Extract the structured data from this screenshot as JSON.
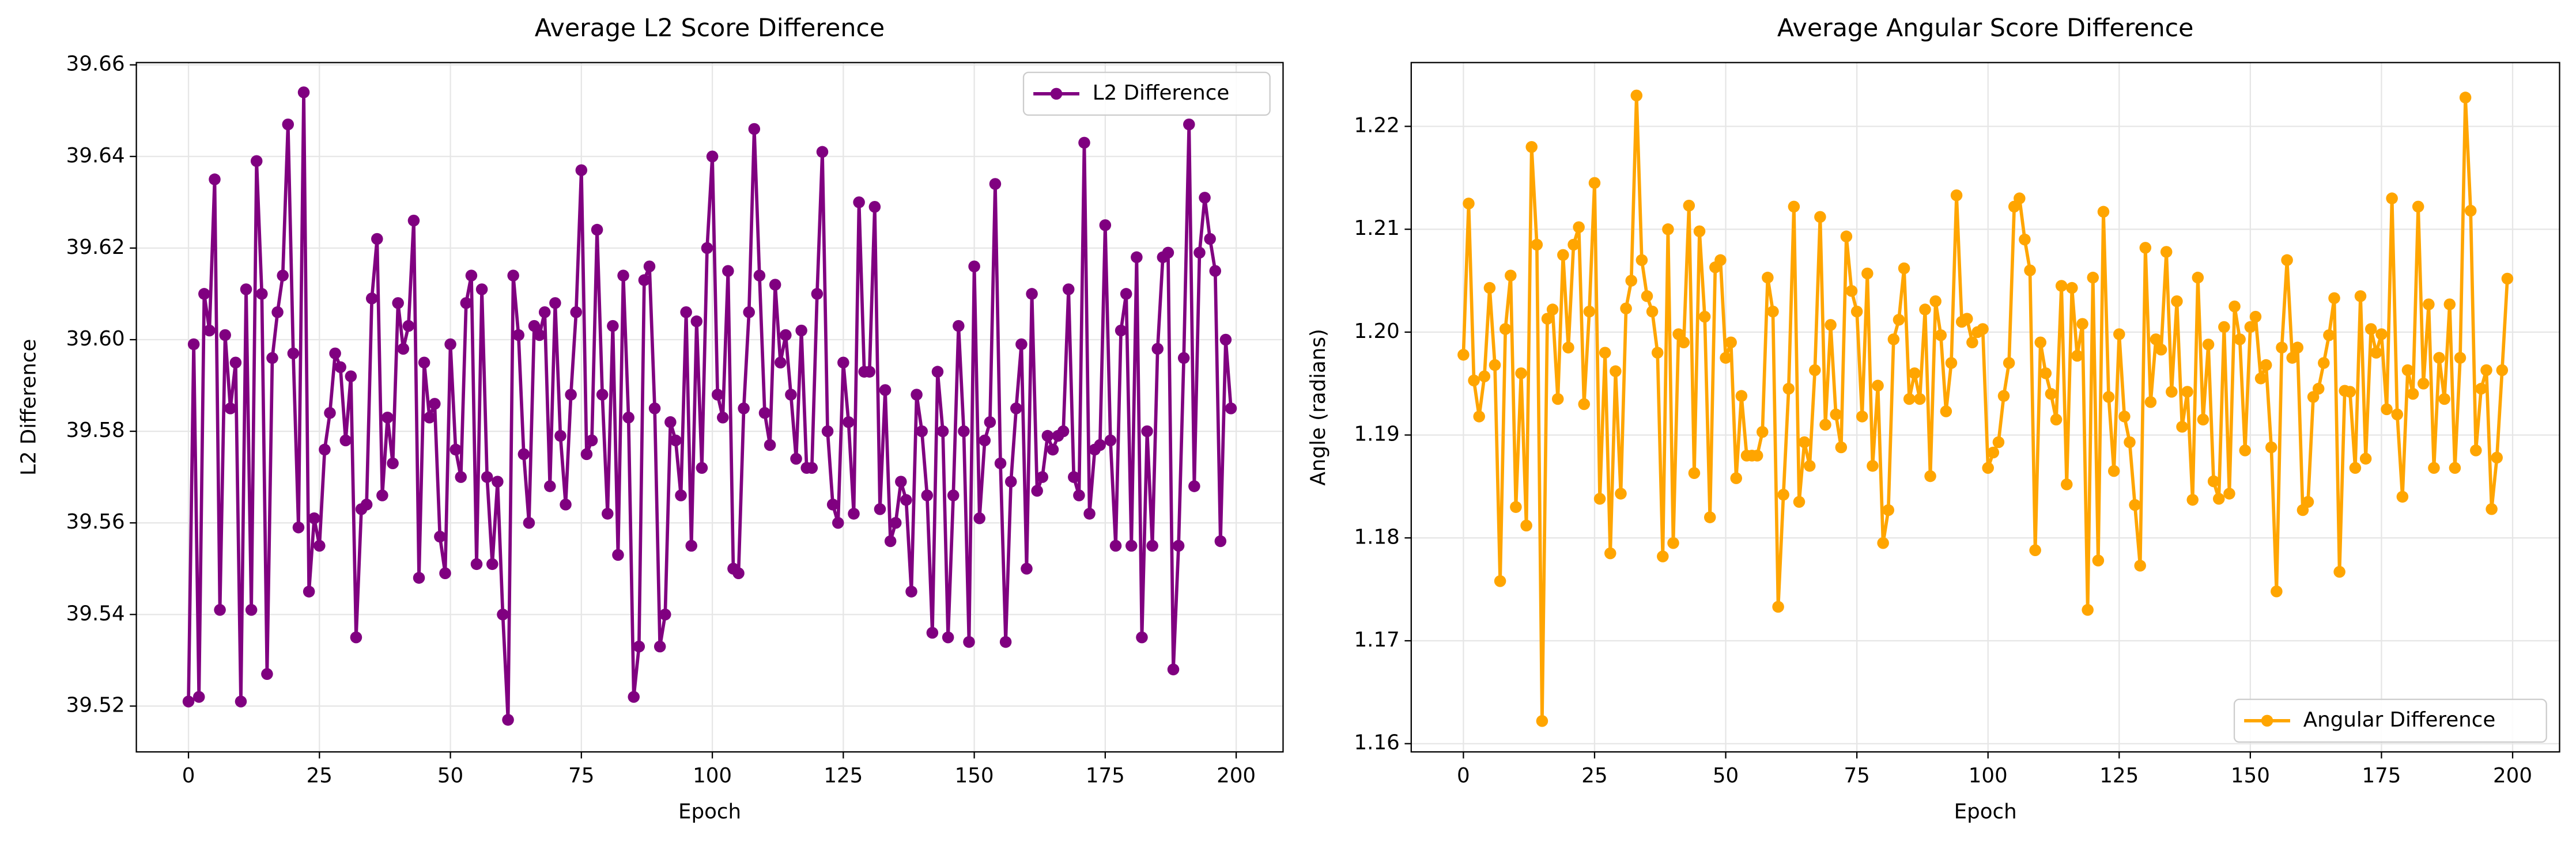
{
  "chart_data": [
    {
      "type": "line",
      "title": "Average L2 Score Difference",
      "xlabel": "Epoch",
      "ylabel": "L2 Difference",
      "x": [
        0,
        1,
        2,
        3,
        4,
        5,
        6,
        7,
        8,
        9,
        10,
        11,
        12,
        13,
        14,
        15,
        16,
        17,
        18,
        19,
        20,
        21,
        22,
        23,
        24,
        25,
        26,
        27,
        28,
        29,
        30,
        31,
        32,
        33,
        34,
        35,
        36,
        37,
        38,
        39,
        40,
        41,
        42,
        43,
        44,
        45,
        46,
        47,
        48,
        49,
        50,
        51,
        52,
        53,
        54,
        55,
        56,
        57,
        58,
        59,
        60,
        61,
        62,
        63,
        64,
        65,
        66,
        67,
        68,
        69,
        70,
        71,
        72,
        73,
        74,
        75,
        76,
        77,
        78,
        79,
        80,
        81,
        82,
        83,
        84,
        85,
        86,
        87,
        88,
        89,
        90,
        91,
        92,
        93,
        94,
        95,
        96,
        97,
        98,
        99,
        100,
        101,
        102,
        103,
        104,
        105,
        106,
        107,
        108,
        109,
        110,
        111,
        112,
        113,
        114,
        115,
        116,
        117,
        118,
        119,
        120,
        121,
        122,
        123,
        124,
        125,
        126,
        127,
        128,
        129,
        130,
        131,
        132,
        133,
        134,
        135,
        136,
        137,
        138,
        139,
        140,
        141,
        142,
        143,
        144,
        145,
        146,
        147,
        148,
        149,
        150,
        151,
        152,
        153,
        154,
        155,
        156,
        157,
        158,
        159,
        160,
        161,
        162,
        163,
        164,
        165,
        166,
        167,
        168,
        169,
        170,
        171,
        172,
        173,
        174,
        175,
        176,
        177,
        178,
        179,
        180,
        181,
        182,
        183,
        184,
        185,
        186,
        187,
        188,
        189,
        190,
        191,
        192,
        193,
        194,
        195,
        196,
        197,
        198,
        199
      ],
      "series": [
        {
          "name": "L2 Difference",
          "color": "#800080",
          "values": [
            39.521,
            39.599,
            39.522,
            39.61,
            39.602,
            39.635,
            39.541,
            39.601,
            39.585,
            39.595,
            39.521,
            39.611,
            39.541,
            39.639,
            39.61,
            39.527,
            39.596,
            39.606,
            39.614,
            39.647,
            39.597,
            39.559,
            39.654,
            39.545,
            39.561,
            39.555,
            39.576,
            39.584,
            39.597,
            39.594,
            39.578,
            39.592,
            39.535,
            39.563,
            39.564,
            39.609,
            39.622,
            39.566,
            39.583,
            39.573,
            39.608,
            39.598,
            39.603,
            39.626,
            39.548,
            39.595,
            39.583,
            39.586,
            39.557,
            39.549,
            39.599,
            39.576,
            39.57,
            39.608,
            39.614,
            39.551,
            39.611,
            39.57,
            39.551,
            39.569,
            39.54,
            39.517,
            39.614,
            39.601,
            39.575,
            39.56,
            39.603,
            39.601,
            39.606,
            39.568,
            39.608,
            39.579,
            39.564,
            39.588,
            39.606,
            39.637,
            39.575,
            39.578,
            39.624,
            39.588,
            39.562,
            39.603,
            39.553,
            39.614,
            39.583,
            39.522,
            39.533,
            39.613,
            39.616,
            39.585,
            39.533,
            39.54,
            39.582,
            39.578,
            39.566,
            39.606,
            39.555,
            39.604,
            39.572,
            39.62,
            39.64,
            39.588,
            39.583,
            39.615,
            39.55,
            39.549,
            39.585,
            39.606,
            39.646,
            39.614,
            39.584,
            39.577,
            39.612,
            39.595,
            39.601,
            39.588,
            39.574,
            39.602,
            39.572,
            39.572,
            39.61,
            39.641,
            39.58,
            39.564,
            39.56,
            39.595,
            39.582,
            39.562,
            39.63,
            39.593,
            39.593,
            39.629,
            39.563,
            39.589,
            39.556,
            39.56,
            39.569,
            39.565,
            39.545,
            39.588,
            39.58,
            39.566,
            39.536,
            39.593,
            39.58,
            39.535,
            39.566,
            39.603,
            39.58,
            39.534,
            39.616,
            39.561,
            39.578,
            39.582,
            39.634,
            39.573,
            39.534,
            39.569,
            39.585,
            39.599,
            39.55,
            39.61,
            39.567,
            39.57,
            39.579,
            39.576,
            39.579,
            39.58,
            39.611,
            39.57,
            39.566,
            39.643,
            39.562,
            39.576,
            39.577,
            39.625,
            39.578,
            39.555,
            39.602,
            39.61,
            39.555,
            39.618,
            39.535,
            39.58,
            39.555,
            39.598,
            39.618,
            39.619,
            39.528,
            39.555,
            39.596,
            39.647,
            39.568,
            39.619,
            39.631,
            39.622,
            39.615,
            39.556,
            39.6,
            39.585
          ]
        }
      ],
      "xlim": [
        -9.95,
        208.95
      ],
      "xticks": [
        0,
        25,
        50,
        75,
        100,
        125,
        150,
        175,
        200
      ],
      "ylim": [
        39.51,
        39.6605
      ],
      "yticks": [
        39.52,
        39.54,
        39.56,
        39.58,
        {
          "value": 39.6,
          "label": "39.60"
        },
        39.62,
        39.64,
        39.66
      ],
      "grid": true,
      "legend": "upper right"
    },
    {
      "type": "line",
      "title": "Average Angular Score Difference",
      "xlabel": "Epoch",
      "ylabel": "Angle (radians)",
      "x": [
        0,
        1,
        2,
        3,
        4,
        5,
        6,
        7,
        8,
        9,
        10,
        11,
        12,
        13,
        14,
        15,
        16,
        17,
        18,
        19,
        20,
        21,
        22,
        23,
        24,
        25,
        26,
        27,
        28,
        29,
        30,
        31,
        32,
        33,
        34,
        35,
        36,
        37,
        38,
        39,
        40,
        41,
        42,
        43,
        44,
        45,
        46,
        47,
        48,
        49,
        50,
        51,
        52,
        53,
        54,
        55,
        56,
        57,
        58,
        59,
        60,
        61,
        62,
        63,
        64,
        65,
        66,
        67,
        68,
        69,
        70,
        71,
        72,
        73,
        74,
        75,
        76,
        77,
        78,
        79,
        80,
        81,
        82,
        83,
        84,
        85,
        86,
        87,
        88,
        89,
        90,
        91,
        92,
        93,
        94,
        95,
        96,
        97,
        98,
        99,
        100,
        101,
        102,
        103,
        104,
        105,
        106,
        107,
        108,
        109,
        110,
        111,
        112,
        113,
        114,
        115,
        116,
        117,
        118,
        119,
        120,
        121,
        122,
        123,
        124,
        125,
        126,
        127,
        128,
        129,
        130,
        131,
        132,
        133,
        134,
        135,
        136,
        137,
        138,
        139,
        140,
        141,
        142,
        143,
        144,
        145,
        146,
        147,
        148,
        149,
        150,
        151,
        152,
        153,
        154,
        155,
        156,
        157,
        158,
        159,
        160,
        161,
        162,
        163,
        164,
        165,
        166,
        167,
        168,
        169,
        170,
        171,
        172,
        173,
        174,
        175,
        176,
        177,
        178,
        179,
        180,
        181,
        182,
        183,
        184,
        185,
        186,
        187,
        188,
        189,
        190,
        191,
        192,
        193,
        194,
        195,
        196,
        197,
        198,
        199
      ],
      "series": [
        {
          "name": "Angular Difference",
          "color": "#ffa500",
          "values": [
            1.1978,
            1.2125,
            1.1953,
            1.1918,
            1.1957,
            1.2043,
            1.1968,
            1.1758,
            1.2003,
            1.2055,
            1.183,
            1.196,
            1.1812,
            1.218,
            1.2085,
            1.1622,
            1.2013,
            1.2022,
            1.1935,
            1.2075,
            1.1985,
            1.2085,
            1.2102,
            1.193,
            1.202,
            1.2145,
            1.1838,
            1.198,
            1.1785,
            1.1962,
            1.1843,
            1.2023,
            1.205,
            1.223,
            1.207,
            1.2035,
            1.202,
            1.198,
            1.1782,
            1.21,
            1.1795,
            1.1998,
            1.199,
            1.2123,
            1.1863,
            1.2098,
            1.2015,
            1.182,
            1.2063,
            1.207,
            1.1975,
            1.199,
            1.1858,
            1.1938,
            1.188,
            1.188,
            1.188,
            1.1903,
            1.2053,
            1.202,
            1.1733,
            1.1842,
            1.1945,
            1.2122,
            1.1835,
            1.1893,
            1.187,
            1.1963,
            1.2112,
            1.191,
            1.2007,
            1.192,
            1.1888,
            1.2093,
            1.204,
            1.202,
            1.1918,
            1.2057,
            1.187,
            1.1948,
            1.1795,
            1.1827,
            1.1993,
            1.2012,
            1.2062,
            1.1935,
            1.196,
            1.1935,
            1.2022,
            1.186,
            1.203,
            1.1997,
            1.1923,
            1.197,
            1.2133,
            1.201,
            1.2013,
            1.199,
            1.2,
            1.2003,
            1.1868,
            1.1883,
            1.1893,
            1.1938,
            1.197,
            1.2122,
            1.213,
            1.209,
            1.206,
            1.1788,
            1.199,
            1.196,
            1.194,
            1.1915,
            1.2045,
            1.1852,
            1.2043,
            1.1977,
            1.2008,
            1.173,
            1.2053,
            1.1778,
            1.2117,
            1.1937,
            1.1865,
            1.1998,
            1.1918,
            1.1893,
            1.1832,
            1.1773,
            1.2082,
            1.1932,
            1.1993,
            1.1983,
            1.2078,
            1.1942,
            1.203,
            1.1908,
            1.1942,
            1.1837,
            1.2053,
            1.1915,
            1.1988,
            1.1855,
            1.1838,
            1.2005,
            1.1843,
            1.2025,
            1.1993,
            1.1885,
            1.2005,
            1.2015,
            1.1955,
            1.1968,
            1.1888,
            1.1748,
            1.1985,
            1.207,
            1.1975,
            1.1985,
            1.1827,
            1.1835,
            1.1937,
            1.1945,
            1.197,
            1.1997,
            1.2033,
            1.1767,
            1.1943,
            1.1942,
            1.1868,
            1.2035,
            1.1877,
            1.2003,
            1.198,
            1.1998,
            1.1925,
            1.213,
            1.192,
            1.184,
            1.1963,
            1.194,
            1.2122,
            1.195,
            1.2027,
            1.1868,
            1.1975,
            1.1935,
            1.2027,
            1.1868,
            1.1975,
            1.2228,
            1.2118,
            1.1885,
            1.1945,
            1.1963,
            1.1828,
            1.1878,
            1.1963,
            1.2052
          ]
        }
      ],
      "xlim": [
        -9.95,
        208.95
      ],
      "xticks": [
        0,
        25,
        50,
        75,
        100,
        125,
        150,
        175,
        200
      ],
      "ylim": [
        1.1592,
        1.2262
      ],
      "yticks": [
        1.16,
        1.17,
        1.18,
        1.19,
        {
          "value": 1.2,
          "label": "1.20"
        },
        1.21,
        1.22
      ],
      "grid": true,
      "legend": "lower right"
    }
  ]
}
